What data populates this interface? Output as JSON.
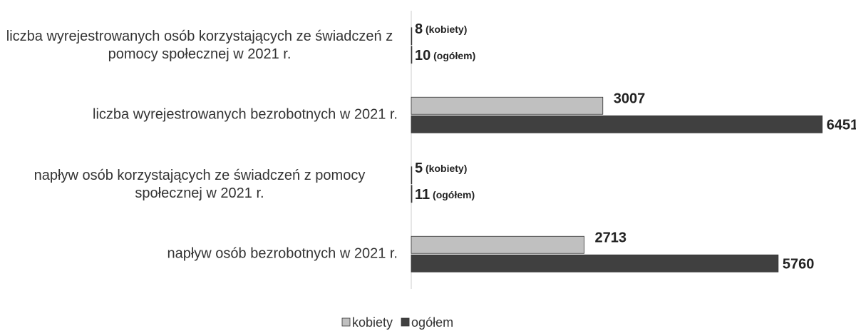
{
  "chart_data": {
    "type": "hbar",
    "categories": [
      "liczba wyrejestrowanych osób korzystających ze świadczeń z pomocy społecznej w 2021 r.",
      "liczba wyrejestrowanych bezrobotnych w 2021 r.",
      "napływ osób korzystających ze świadczeń z pomocy społecznej w 2021 r.",
      "napływ osób bezrobotnych w 2021 r."
    ],
    "series": [
      {
        "name": "kobiety",
        "color": "#c0c0c0",
        "values": [
          8,
          3007,
          5,
          2713
        ],
        "value_labels": [
          "8 (kobiety)",
          "3007",
          "5 (kobiety)",
          "2713"
        ]
      },
      {
        "name": "ogółem",
        "color": "#404040",
        "values": [
          10,
          6451,
          11,
          5760
        ],
        "value_labels": [
          "10 (ogółem)",
          "6451",
          "11 (ogółem)",
          "5760"
        ]
      }
    ],
    "xlim": [
      0,
      6500
    ],
    "grid": false,
    "legend": "bottom"
  }
}
